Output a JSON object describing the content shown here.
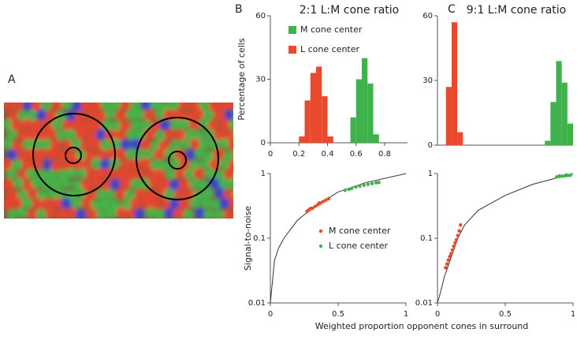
{
  "image_panel": {
    "label": "A"
  },
  "chart_data": [
    {
      "type": "histogram",
      "panel": "B",
      "title": "2:1 L:M cone ratio",
      "ylabel": "Percentage of cells",
      "xlim": [
        0,
        0.96
      ],
      "xticks": [
        0,
        0.2,
        0.4,
        0.6,
        0.8
      ],
      "ylim": [
        0,
        60
      ],
      "yticks": [
        0,
        30,
        60
      ],
      "series": [
        {
          "name": "M cone center",
          "color": "#3fb24b",
          "bins": [
            0.56,
            0.6,
            0.64,
            0.68,
            0.72,
            0.76
          ],
          "values": [
            12,
            30,
            40,
            28,
            4
          ]
        },
        {
          "name": "L cone center",
          "color": "#ea4a2c",
          "bins": [
            0.2,
            0.24,
            0.28,
            0.32,
            0.36,
            0.4,
            0.44
          ],
          "values": [
            3,
            20,
            33,
            36,
            22,
            3
          ]
        }
      ]
    },
    {
      "type": "histogram",
      "panel": "C",
      "title": "9:1 L:M cone ratio",
      "xlim": [
        0,
        0.96
      ],
      "ylim": [
        0,
        60
      ],
      "yticks": [
        0,
        30,
        60
      ],
      "series": [
        {
          "color": "#ea4a2c",
          "bins": [
            0.06,
            0.1,
            0.14,
            0.18
          ],
          "values": [
            27,
            57,
            6
          ]
        },
        {
          "color": "#3fb24b",
          "bins": [
            0.76,
            0.8,
            0.84,
            0.88,
            0.92,
            0.96
          ],
          "values": [
            2,
            20,
            39,
            29,
            10
          ]
        }
      ]
    },
    {
      "type": "scatter",
      "ylabel": "Signal-to-noise",
      "xlabel": "Weighted proportion opponent cones in surround",
      "log_y": true,
      "xlim": [
        0,
        1
      ],
      "xticks": [
        0,
        0.5,
        1
      ],
      "ylim": [
        0.01,
        1
      ],
      "yticks": [
        0.01,
        0.1,
        1
      ],
      "series": [
        {
          "type": "line",
          "color": "#333333",
          "x": [
            0,
            0.03,
            0.06,
            0.1,
            0.2,
            0.3,
            0.5,
            0.7,
            1
          ],
          "values": [
            0.01,
            0.045,
            0.07,
            0.1,
            0.19,
            0.28,
            0.52,
            0.72,
            1
          ]
        },
        {
          "type": "scatter",
          "name": "M cone center",
          "color": "#ea4a2c",
          "x": [
            0.27,
            0.28,
            0.29,
            0.3,
            0.31,
            0.33,
            0.35,
            0.36,
            0.37,
            0.39,
            0.41,
            0.43
          ],
          "values": [
            0.26,
            0.27,
            0.28,
            0.29,
            0.29,
            0.31,
            0.33,
            0.35,
            0.35,
            0.37,
            0.39,
            0.41
          ]
        },
        {
          "type": "scatter",
          "name": "L cone center",
          "color": "#3fb24b",
          "x": [
            0.55,
            0.58,
            0.6,
            0.63,
            0.66,
            0.69,
            0.72,
            0.75,
            0.78,
            0.8
          ],
          "values": [
            0.55,
            0.57,
            0.59,
            0.62,
            0.64,
            0.66,
            0.68,
            0.7,
            0.72,
            0.73
          ]
        }
      ]
    },
    {
      "type": "scatter",
      "log_y": true,
      "xlim": [
        0,
        1
      ],
      "xticks": [
        0,
        0.5,
        1
      ],
      "ylim": [
        0.01,
        1
      ],
      "yticks": [
        0.01,
        0.1,
        1
      ],
      "series": [
        {
          "type": "line",
          "color": "#333333",
          "x": [
            0,
            0.02,
            0.05,
            0.1,
            0.15,
            0.2,
            0.3,
            0.5,
            0.7,
            1
          ],
          "values": [
            0.01,
            0.014,
            0.025,
            0.05,
            0.1,
            0.16,
            0.27,
            0.46,
            0.68,
            1
          ]
        },
        {
          "type": "scatter",
          "color": "#ea4a2c",
          "x": [
            0.06,
            0.07,
            0.08,
            0.09,
            0.1,
            0.11,
            0.12,
            0.13,
            0.14,
            0.15,
            0.16,
            0.17
          ],
          "values": [
            0.035,
            0.04,
            0.046,
            0.052,
            0.058,
            0.066,
            0.075,
            0.085,
            0.095,
            0.11,
            0.13,
            0.16
          ]
        },
        {
          "type": "scatter",
          "color": "#3fb24b",
          "x": [
            0.88,
            0.9,
            0.9,
            0.92,
            0.94,
            0.95,
            0.96,
            0.98
          ],
          "values": [
            0.89,
            0.9,
            0.92,
            0.91,
            0.92,
            0.95,
            0.93,
            0.94
          ]
        }
      ]
    }
  ]
}
